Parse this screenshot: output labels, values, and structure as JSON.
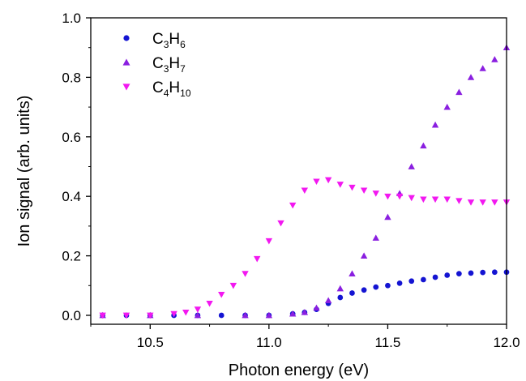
{
  "chart_data": {
    "type": "scatter",
    "xlabel": "Photon energy (eV)",
    "ylabel": "Ion signal (arb. units)",
    "xlim": [
      10.25,
      12.0
    ],
    "ylim": [
      -0.03,
      1.0
    ],
    "x_ticks": [
      10.5,
      11.0,
      11.5,
      12.0
    ],
    "x_tick_labels": [
      "10.5",
      "11.0",
      "11.5",
      "12.0"
    ],
    "y_ticks": [
      0.0,
      0.2,
      0.4,
      0.6,
      0.8,
      1.0
    ],
    "y_tick_labels": [
      "0.0",
      "0.2",
      "0.4",
      "0.6",
      "0.8",
      "1.0"
    ],
    "grid": false,
    "legend_position": "top-left",
    "series": [
      {
        "name": "C3H6",
        "legend_parts": [
          [
            "C",
            ""
          ],
          [
            "3",
            "sub"
          ],
          [
            "H",
            ""
          ],
          [
            "6",
            "sub"
          ]
        ],
        "marker": "circle",
        "color": "#1414d2",
        "points": [
          [
            10.3,
            0.0
          ],
          [
            10.4,
            0.0
          ],
          [
            10.5,
            0.0
          ],
          [
            10.6,
            0.0
          ],
          [
            10.7,
            0.0
          ],
          [
            10.8,
            0.0
          ],
          [
            10.9,
            0.0
          ],
          [
            11.0,
            0.0
          ],
          [
            11.1,
            0.005
          ],
          [
            11.15,
            0.01
          ],
          [
            11.2,
            0.02
          ],
          [
            11.25,
            0.04
          ],
          [
            11.3,
            0.06
          ],
          [
            11.35,
            0.075
          ],
          [
            11.4,
            0.085
          ],
          [
            11.45,
            0.095
          ],
          [
            11.5,
            0.1
          ],
          [
            11.55,
            0.108
          ],
          [
            11.6,
            0.115
          ],
          [
            11.65,
            0.12
          ],
          [
            11.7,
            0.128
          ],
          [
            11.75,
            0.135
          ],
          [
            11.8,
            0.14
          ],
          [
            11.85,
            0.142
          ],
          [
            11.9,
            0.144
          ],
          [
            11.95,
            0.145
          ],
          [
            12.0,
            0.145
          ]
        ]
      },
      {
        "name": "C3H7",
        "legend_parts": [
          [
            "C",
            ""
          ],
          [
            "3",
            "sub"
          ],
          [
            "H",
            ""
          ],
          [
            "7",
            "sub"
          ]
        ],
        "marker": "triangle-up",
        "color": "#8a1fe0",
        "points": [
          [
            10.3,
            0.0
          ],
          [
            10.5,
            0.0
          ],
          [
            10.7,
            0.0
          ],
          [
            10.9,
            0.0
          ],
          [
            11.0,
            0.0
          ],
          [
            11.1,
            0.005
          ],
          [
            11.15,
            0.01
          ],
          [
            11.2,
            0.025
          ],
          [
            11.25,
            0.05
          ],
          [
            11.3,
            0.09
          ],
          [
            11.35,
            0.14
          ],
          [
            11.4,
            0.2
          ],
          [
            11.45,
            0.26
          ],
          [
            11.5,
            0.33
          ],
          [
            11.55,
            0.41
          ],
          [
            11.6,
            0.5
          ],
          [
            11.65,
            0.57
          ],
          [
            11.7,
            0.64
          ],
          [
            11.75,
            0.7
          ],
          [
            11.8,
            0.75
          ],
          [
            11.85,
            0.8
          ],
          [
            11.9,
            0.83
          ],
          [
            11.95,
            0.86
          ],
          [
            12.0,
            0.9
          ]
        ]
      },
      {
        "name": "C4H10",
        "legend_parts": [
          [
            "C",
            ""
          ],
          [
            "4",
            "sub"
          ],
          [
            "H",
            ""
          ],
          [
            "10",
            "sub"
          ]
        ],
        "marker": "triangle-down",
        "color": "#f218f0",
        "points": [
          [
            10.3,
            0.0
          ],
          [
            10.4,
            0.0
          ],
          [
            10.5,
            0.0
          ],
          [
            10.6,
            0.005
          ],
          [
            10.65,
            0.01
          ],
          [
            10.7,
            0.02
          ],
          [
            10.75,
            0.04
          ],
          [
            10.8,
            0.07
          ],
          [
            10.85,
            0.1
          ],
          [
            10.9,
            0.14
          ],
          [
            10.95,
            0.19
          ],
          [
            11.0,
            0.25
          ],
          [
            11.05,
            0.31
          ],
          [
            11.1,
            0.37
          ],
          [
            11.15,
            0.42
          ],
          [
            11.2,
            0.45
          ],
          [
            11.25,
            0.455
          ],
          [
            11.3,
            0.44
          ],
          [
            11.35,
            0.43
          ],
          [
            11.4,
            0.42
          ],
          [
            11.45,
            0.41
          ],
          [
            11.5,
            0.4
          ],
          [
            11.55,
            0.4
          ],
          [
            11.6,
            0.395
          ],
          [
            11.65,
            0.39
          ],
          [
            11.7,
            0.39
          ],
          [
            11.75,
            0.39
          ],
          [
            11.8,
            0.385
          ],
          [
            11.85,
            0.38
          ],
          [
            11.9,
            0.38
          ],
          [
            11.95,
            0.38
          ],
          [
            12.0,
            0.38
          ]
        ]
      }
    ]
  }
}
